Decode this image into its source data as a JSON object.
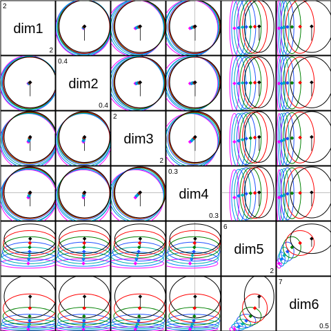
{
  "chart_data": {
    "type": "scatter",
    "layout": "scatterplot-matrix",
    "variables": [
      "dim1",
      "dim2",
      "dim3",
      "dim4",
      "dim5",
      "dim6"
    ],
    "ranges": [
      {
        "max": "2",
        "min": "2"
      },
      {
        "max": "0.4",
        "min": "0.4"
      },
      {
        "max": "2",
        "min": "2"
      },
      {
        "max": "0.3",
        "min": "0.3"
      },
      {
        "max": "6",
        "min": "2"
      },
      {
        "max": "7",
        "min": "0.5"
      }
    ],
    "series_colors": [
      "#ff00ff",
      "#0080ff",
      "#00b0b0",
      "#2050ff",
      "#008000",
      "#ff0000",
      "#000000"
    ],
    "groups": [
      {
        "means": [
          0.0,
          0.0,
          -0.12,
          -0.14,
          -0.54,
          -0.93
        ],
        "sd": [
          0.48,
          0.47,
          0.48,
          0.47,
          0.08,
          0.04
        ]
      },
      {
        "means": [
          0.02,
          0.0,
          -0.08,
          -0.08,
          -0.38,
          -0.84
        ],
        "sd": [
          0.48,
          0.46,
          0.46,
          0.45,
          0.12,
          0.06
        ]
      },
      {
        "means": [
          0.04,
          0.02,
          -0.04,
          -0.05,
          -0.24,
          -0.74
        ],
        "sd": [
          0.47,
          0.45,
          0.45,
          0.45,
          0.14,
          0.08
        ]
      },
      {
        "means": [
          0.05,
          0.02,
          0.0,
          0.0,
          -0.1,
          -0.62
        ],
        "sd": [
          0.46,
          0.44,
          0.44,
          0.44,
          0.16,
          0.11
        ]
      },
      {
        "means": [
          0.05,
          0.02,
          0.02,
          0.02,
          0.06,
          -0.45
        ],
        "sd": [
          0.45,
          0.44,
          0.43,
          0.43,
          0.18,
          0.15
        ]
      },
      {
        "means": [
          0.06,
          0.03,
          0.04,
          0.03,
          0.22,
          -0.15
        ],
        "sd": [
          0.45,
          0.43,
          0.43,
          0.43,
          0.21,
          0.24
        ]
      },
      {
        "means": [
          0.07,
          0.04,
          0.06,
          0.05,
          0.38,
          0.28
        ],
        "sd": [
          0.44,
          0.43,
          0.43,
          0.43,
          0.25,
          0.36
        ]
      }
    ],
    "reference_lines": {
      "dim4": 0.02
    },
    "grid": false,
    "legend": "none"
  }
}
